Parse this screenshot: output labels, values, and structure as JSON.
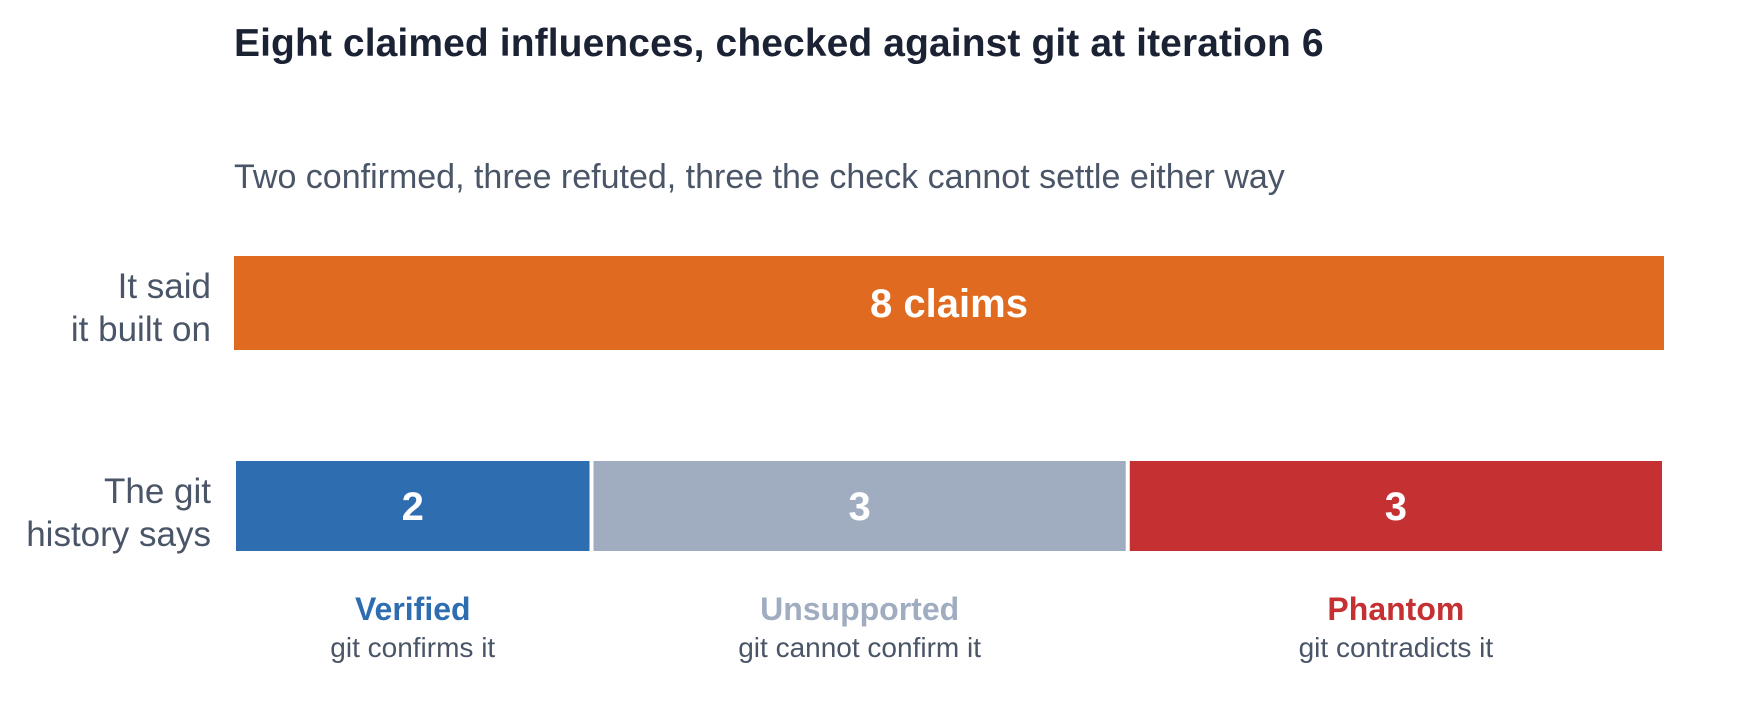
{
  "chart_data": {
    "type": "bar",
    "title": "Eight claimed influences, checked against git at iteration 6",
    "subtitle": "Two confirmed, three refuted, three the check cannot settle either way",
    "total": {
      "label_lines": [
        "It said",
        "it built on"
      ],
      "value": 8,
      "value_label": "8 claims",
      "color": "#e06b20"
    },
    "breakdown": {
      "label_lines": [
        "The git",
        "history says"
      ],
      "segments": [
        {
          "name": "Verified",
          "description": "git confirms it",
          "value": 2,
          "color": "#2e6db0"
        },
        {
          "name": "Unsupported",
          "description": "git cannot confirm it",
          "value": 3,
          "color": "#a0adc1"
        },
        {
          "name": "Phantom",
          "description": "git contradicts it",
          "value": 3,
          "color": "#c53033"
        }
      ]
    }
  }
}
